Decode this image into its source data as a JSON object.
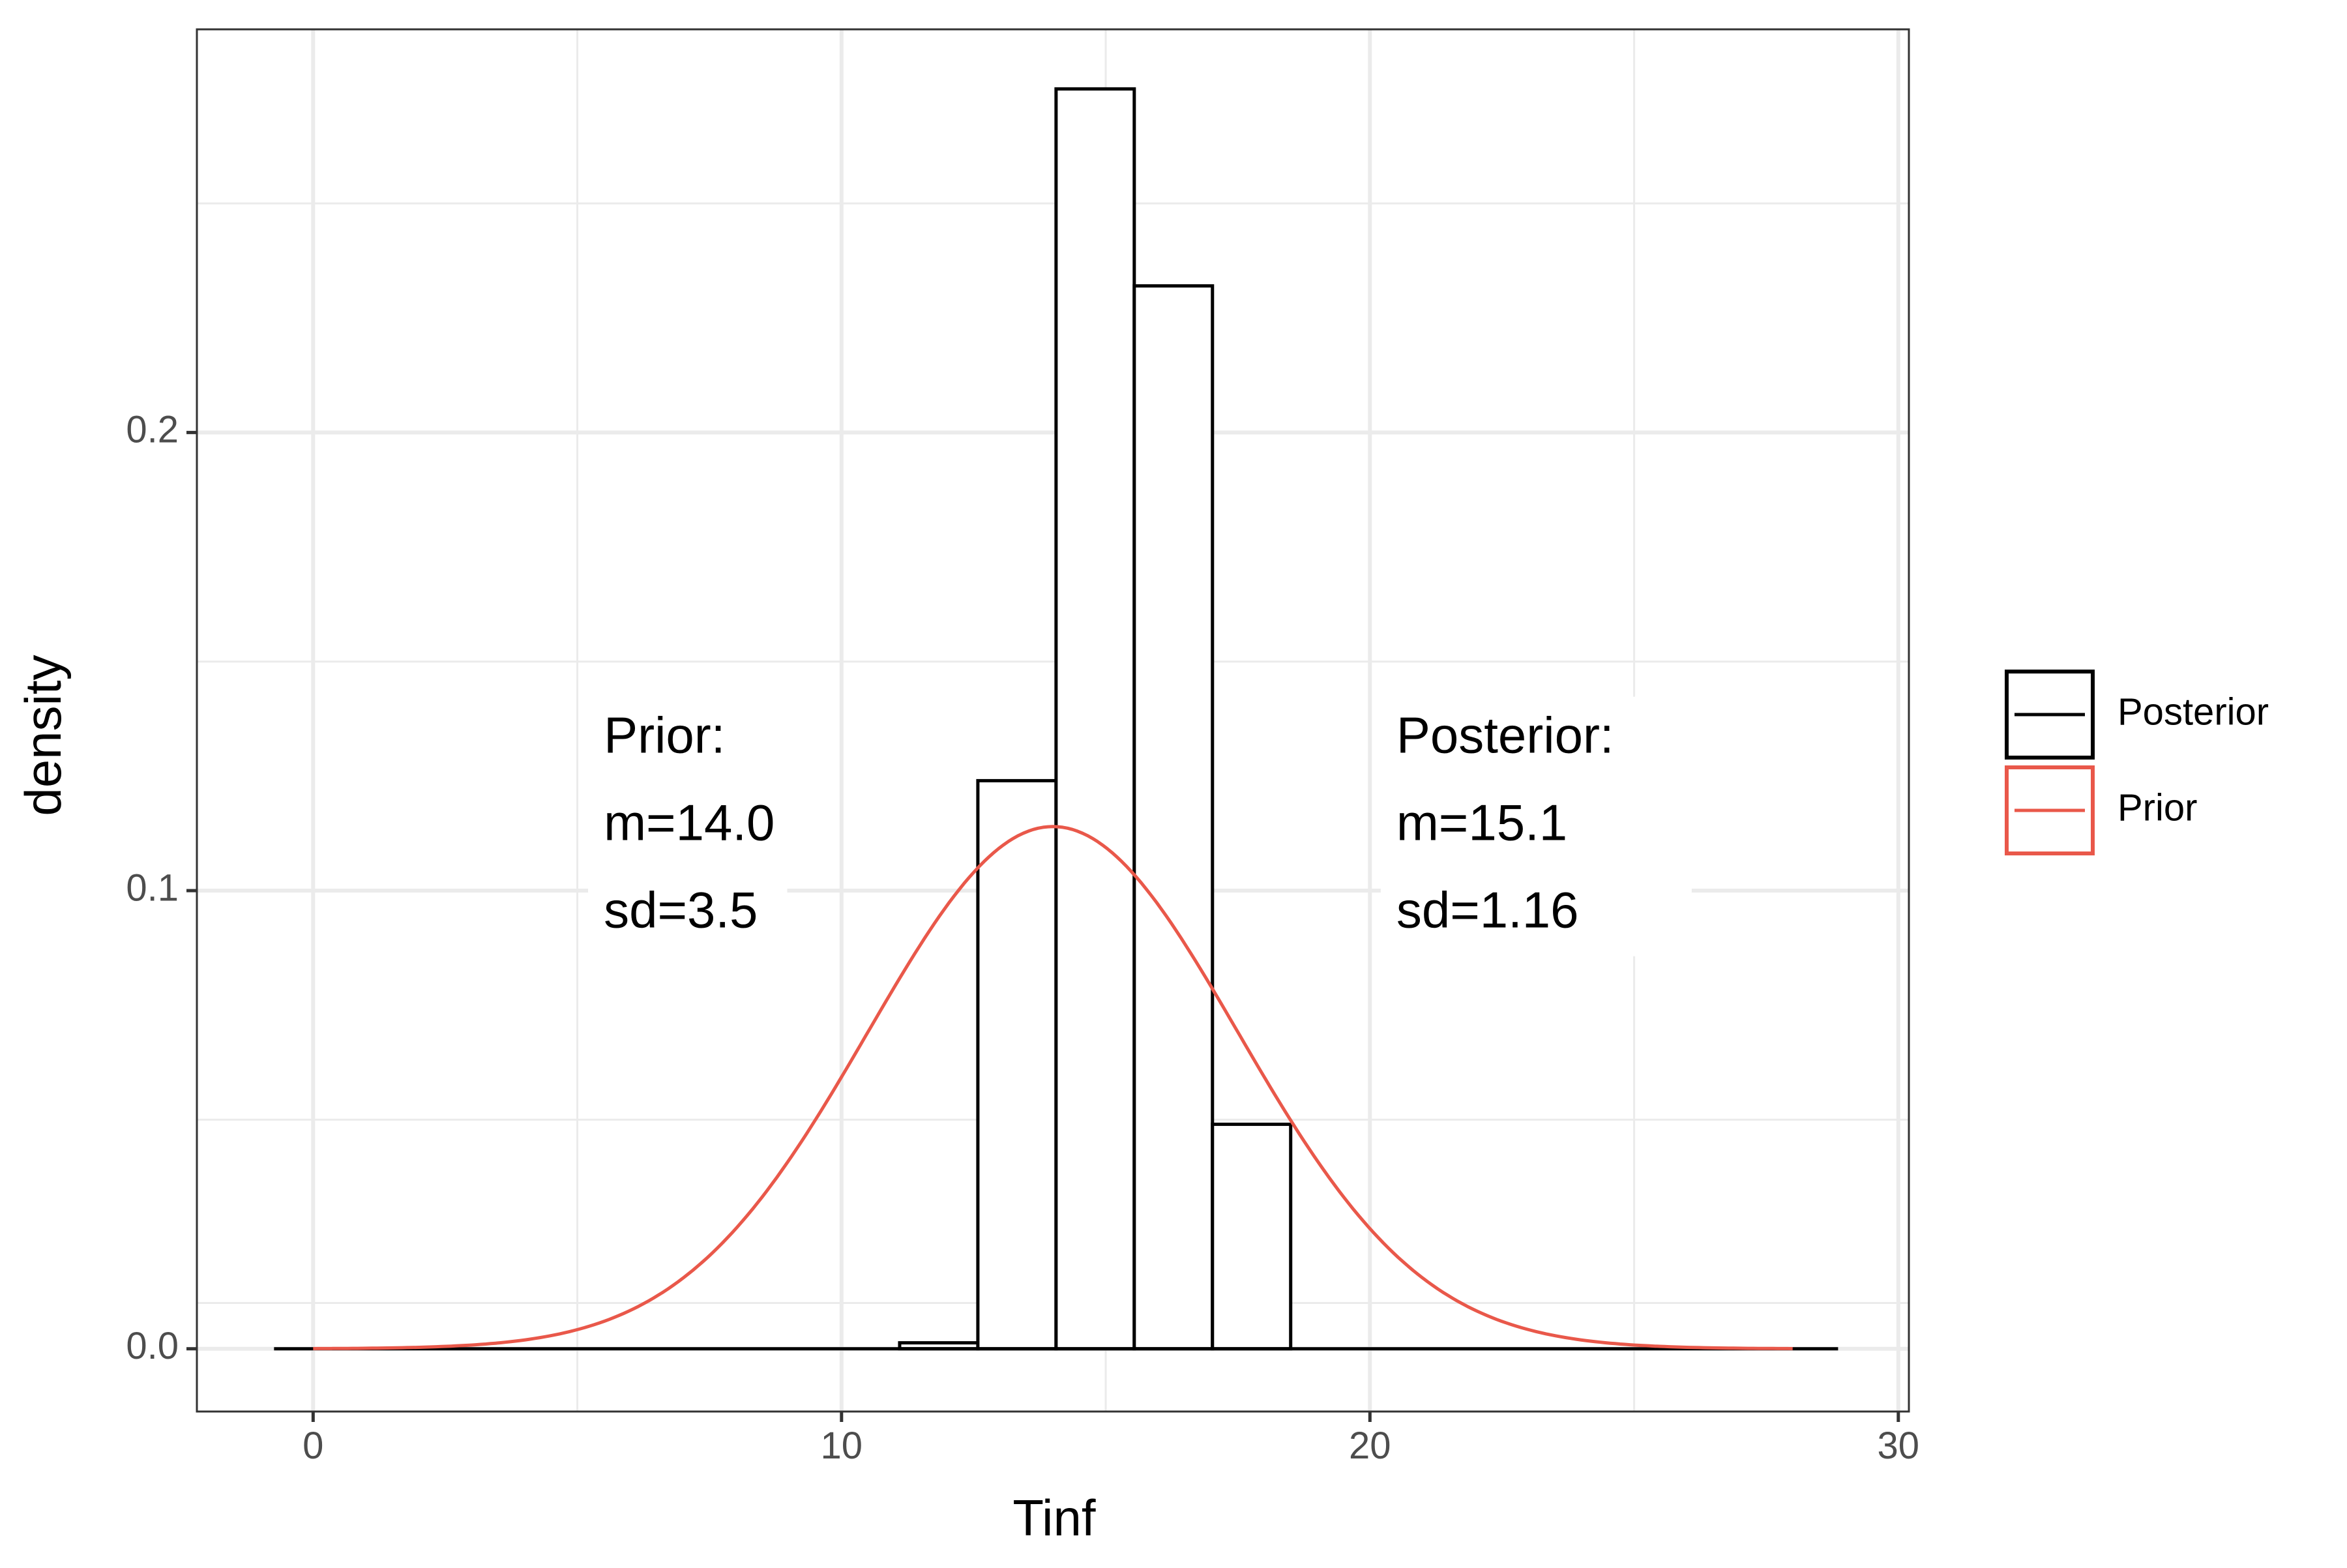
{
  "chart_data": {
    "type": "histogram",
    "title": "",
    "xlabel": "Tinf",
    "ylabel": "density",
    "xlim": [
      -2.2,
      30.2
    ],
    "ylim": [
      -0.0137,
      0.288
    ],
    "x_ticks": [
      0,
      10,
      20,
      30
    ],
    "x_minor_ticks": [
      5,
      15,
      25
    ],
    "y_ticks": [
      0.0,
      0.1,
      0.2
    ],
    "y_minor_ticks": [
      0.05,
      0.15,
      0.25
    ],
    "x_tick_labels": [
      "0",
      "10",
      "20",
      "30"
    ],
    "y_tick_labels": [
      "0.0",
      "0.1",
      "0.2"
    ],
    "grid": true,
    "legend_position": "right",
    "series": [
      {
        "name": "Posterior",
        "kind": "histogram",
        "color": "#000000",
        "bins": [
          {
            "x0": -0.74,
            "x1": 0.74,
            "density": 0
          },
          {
            "x0": 0.74,
            "x1": 2.22,
            "density": 0
          },
          {
            "x0": 2.22,
            "x1": 3.7,
            "density": 0
          },
          {
            "x0": 3.7,
            "x1": 5.18,
            "density": 0
          },
          {
            "x0": 5.18,
            "x1": 6.66,
            "density": 0
          },
          {
            "x0": 6.66,
            "x1": 8.14,
            "density": 0
          },
          {
            "x0": 8.14,
            "x1": 9.62,
            "density": 0
          },
          {
            "x0": 9.62,
            "x1": 11.1,
            "density": 0
          },
          {
            "x0": 11.1,
            "x1": 12.58,
            "density": 0.0013
          },
          {
            "x0": 12.58,
            "x1": 14.06,
            "density": 0.124
          },
          {
            "x0": 14.06,
            "x1": 15.54,
            "density": 0.275
          },
          {
            "x0": 15.54,
            "x1": 17.02,
            "density": 0.232
          },
          {
            "x0": 17.02,
            "x1": 18.5,
            "density": 0.049
          },
          {
            "x0": 18.5,
            "x1": 19.98,
            "density": 0
          },
          {
            "x0": 19.98,
            "x1": 21.46,
            "density": 0
          },
          {
            "x0": 21.46,
            "x1": 22.94,
            "density": 0
          },
          {
            "x0": 22.94,
            "x1": 24.42,
            "density": 0
          },
          {
            "x0": 24.42,
            "x1": 25.9,
            "density": 0
          },
          {
            "x0": 25.9,
            "x1": 27.38,
            "density": 0
          },
          {
            "x0": 27.38,
            "x1": 28.86,
            "density": 0
          }
        ]
      },
      {
        "name": "Prior",
        "kind": "line",
        "color": "#E9584A",
        "distribution": "normal",
        "mean": 14.0,
        "sd": 3.5,
        "x_range": [
          0,
          28
        ]
      }
    ],
    "annotations": [
      {
        "lines": [
          "Prior:",
          "m=14.0",
          "sd=3.5"
        ],
        "x": 5.5,
        "y": 0.114
      },
      {
        "lines": [
          "Posterior:",
          "m=15.1",
          "sd=1.16"
        ],
        "x": 20.5,
        "y": 0.114
      }
    ],
    "reference_line": {
      "y": 0.01
    }
  }
}
